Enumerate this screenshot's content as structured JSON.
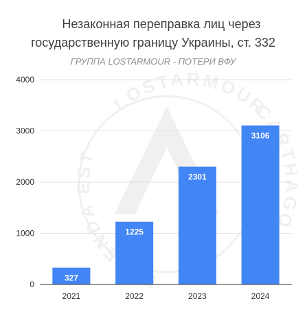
{
  "chart_data": {
    "type": "bar",
    "title_lines": [
      "Незаконная переправка лиц через",
      "государственную границу Украины, ст. 332"
    ],
    "subtitle": "ГРУППА LOSTARMOUR - ПОТЕРИ ВФУ",
    "categories": [
      "2021",
      "2022",
      "2023",
      "2024"
    ],
    "values": [
      327,
      1225,
      2301,
      3106
    ],
    "data_labels": [
      "327",
      "1225",
      "2301",
      "3106"
    ],
    "y_ticks": [
      0,
      1000,
      2000,
      3000,
      4000
    ],
    "ylim": [
      0,
      4000
    ],
    "xlabel": "",
    "ylabel": "",
    "grid": true,
    "legend": "none",
    "bar_color": "#4285f4",
    "grid_color": "#e0e0e0",
    "axis_color": "#333333",
    "watermark": {
      "text_top": "LOSTARMOUR",
      "text_right": "CARTHAGO",
      "text_bottom": "DELENDA EST",
      "color": "#bdbdbd"
    }
  }
}
